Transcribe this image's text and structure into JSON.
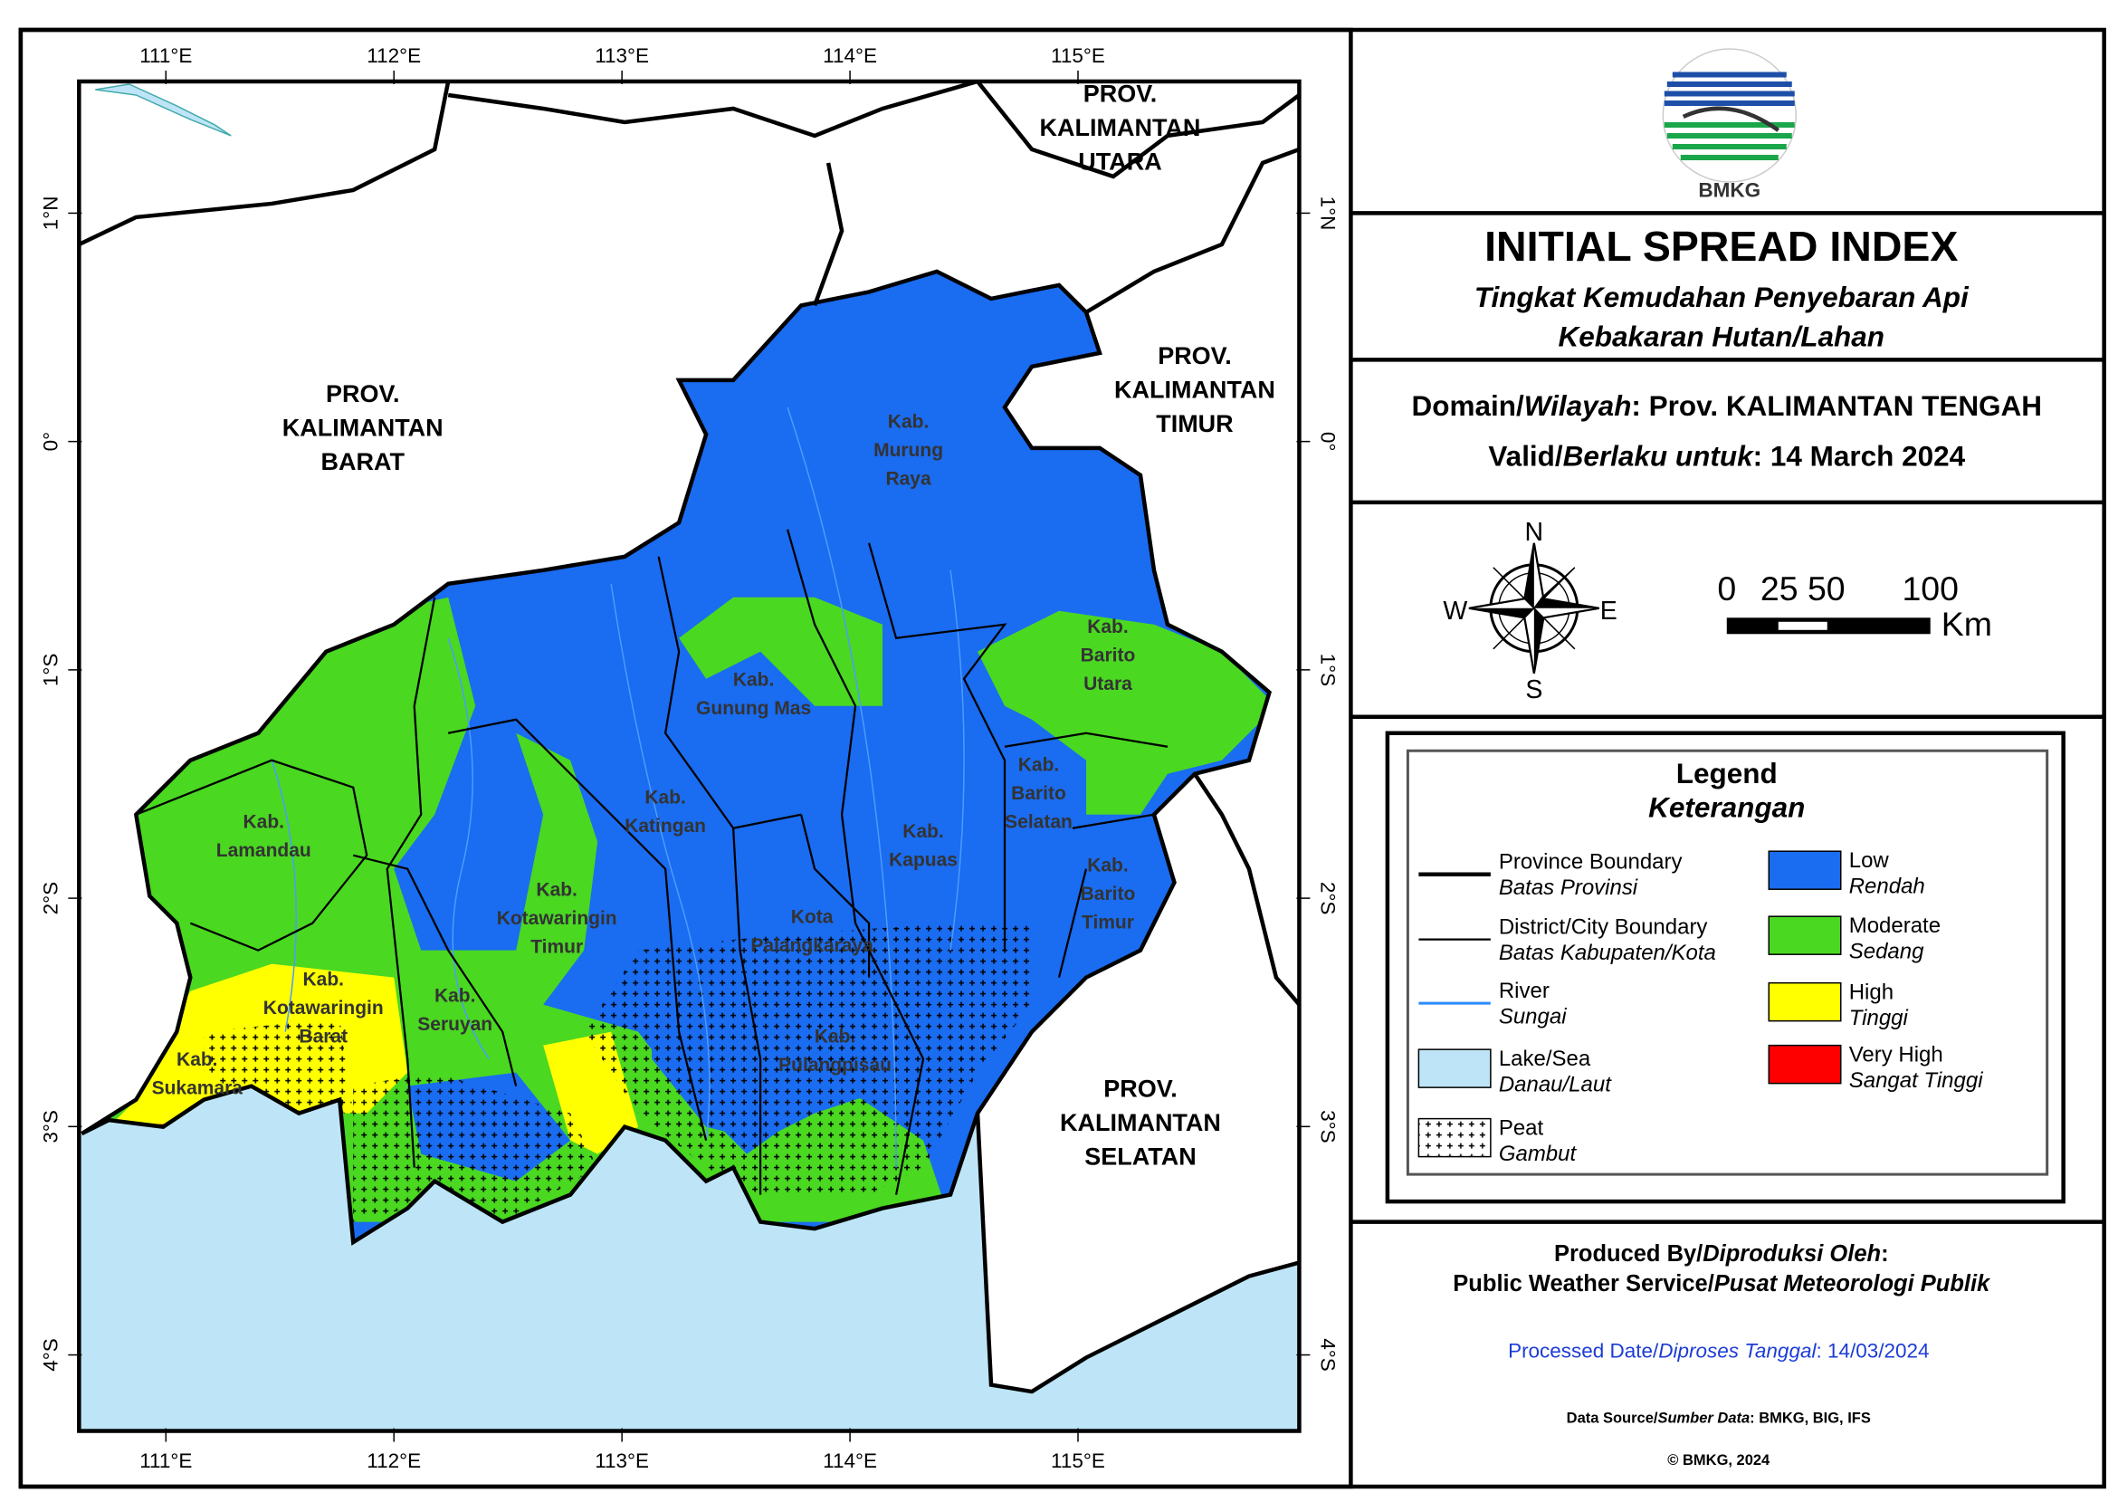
{
  "map": {
    "lon_labels": [
      "111°E",
      "112°E",
      "113°E",
      "114°E",
      "115°E"
    ],
    "lat_labels": [
      "1°N",
      "0°",
      "1°S",
      "2°S",
      "3°S",
      "4°S"
    ],
    "provinces": [
      [
        "PROV.",
        "KALIMANTAN",
        "BARAT"
      ],
      [
        "PROV.",
        "KALIMANTAN",
        "UTARA"
      ],
      [
        "PROV.",
        "KALIMANTAN",
        "TIMUR"
      ],
      [
        "PROV.",
        "KALIMANTAN",
        "SELATAN"
      ]
    ],
    "districts": [
      [
        "Kab.",
        "Murung",
        "Raya"
      ],
      [
        "Kab.",
        "Gunung Mas"
      ],
      [
        "Kab.",
        "Katingan"
      ],
      [
        "Kab.",
        "Barito",
        "Utara"
      ],
      [
        "Kab.",
        "Barito",
        "Selatan"
      ],
      [
        "Kab.",
        "Kapuas"
      ],
      [
        "Kab.",
        "Barito",
        "Timur"
      ],
      [
        "Kab.",
        "Lamandau"
      ],
      [
        "Kab.",
        "Kotawaringin",
        "Timur"
      ],
      [
        "Kota",
        "Palangkaraya"
      ],
      [
        "Kab.",
        "Kotawaringin",
        "Barat"
      ],
      [
        "Kab.",
        "Seruyan"
      ],
      [
        "Kab.",
        "Pulangpisau"
      ],
      [
        "Kab.",
        "Sukamara"
      ]
    ]
  },
  "logo_text": "BMKG",
  "header": {
    "title": "INITIAL SPREAD INDEX",
    "subtitle": [
      "Tingkat Kemudahan Penyebaran Api",
      "Kebakaran Hutan/Lahan"
    ]
  },
  "domain": [
    "Domain/",
    "Wilayah",
    ": Prov. KALIMANTAN TENGAH"
  ],
  "valid": [
    "Valid/",
    "Berlaku untuk",
    ": 14 March 2024"
  ],
  "compass": {
    "n": "N",
    "s": "S",
    "e": "E",
    "w": "W"
  },
  "scale": {
    "labels": [
      "0",
      "25 50",
      "100"
    ],
    "unit": "Km"
  },
  "legend": {
    "title": "Legend",
    "subtitle": "Keterangan",
    "lines": [
      {
        "label": "Province Boundary",
        "sublabel": "Batas Provinsi"
      },
      {
        "label": "District/City Boundary",
        "sublabel": "Batas Kabupaten/Kota"
      },
      {
        "label": "River",
        "sublabel": "Sungai"
      },
      {
        "label": "Lake/Sea",
        "sublabel": "Danau/Laut"
      },
      {
        "label": "Peat",
        "sublabel": "Gambut"
      }
    ],
    "classes": [
      {
        "label": "Low",
        "sublabel": "Rendah",
        "color": "#1a6cf0"
      },
      {
        "label": "Moderate",
        "sublabel": "Sedang",
        "color": "#4ad821"
      },
      {
        "label": "High",
        "sublabel": "Tinggi",
        "color": "#ffff00"
      },
      {
        "label": "Very High",
        "sublabel": "Sangat Tinggi",
        "color": "#ff0000"
      }
    ]
  },
  "footer": {
    "produced": [
      "Produced By/",
      "Diproduksi Oleh",
      ":"
    ],
    "service": [
      "Public Weather Service/",
      "Pusat Meteorologi Publik"
    ],
    "processed": [
      "Processed Date/",
      "Diproses Tanggal",
      ": 14/03/2024"
    ],
    "source": [
      "Data Source/",
      "Sumber Data",
      ": BMKG, BIG, IFS"
    ],
    "copyright": "© BMKG, 2024"
  }
}
